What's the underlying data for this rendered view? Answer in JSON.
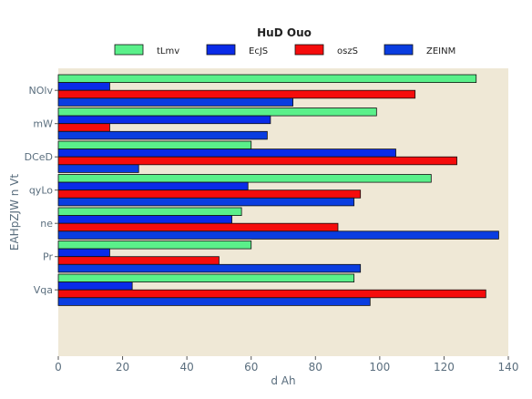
{
  "chart_data": {
    "type": "bar",
    "orientation": "horizontal",
    "legend_title": "HuD Ouo",
    "xlabel": "d Ah",
    "ylabel": "EAHpZJW n Vt",
    "xlim": [
      0,
      140
    ],
    "xticks": [
      0,
      20,
      40,
      60,
      80,
      100,
      120,
      140
    ],
    "grid": false,
    "legend_position": "top",
    "categories": [
      "NOlv",
      "mW",
      "DCeD",
      "qyLo",
      "ne",
      "Pr",
      "Vqa"
    ],
    "series": [
      {
        "name": "tLmv",
        "color": "#5af08a",
        "values": [
          130,
          99,
          60,
          116,
          57,
          60,
          92
        ]
      },
      {
        "name": "EcJS",
        "color": "#0a2be8",
        "values": [
          16,
          66,
          105,
          59,
          54,
          16,
          23
        ]
      },
      {
        "name": "oszS",
        "color": "#f50c0c",
        "values": [
          111,
          16,
          124,
          94,
          87,
          50,
          133
        ]
      },
      {
        "name": "ZEINM",
        "color": "#0a3de0",
        "values": [
          73,
          65,
          25,
          92,
          137,
          94,
          97
        ]
      }
    ]
  }
}
